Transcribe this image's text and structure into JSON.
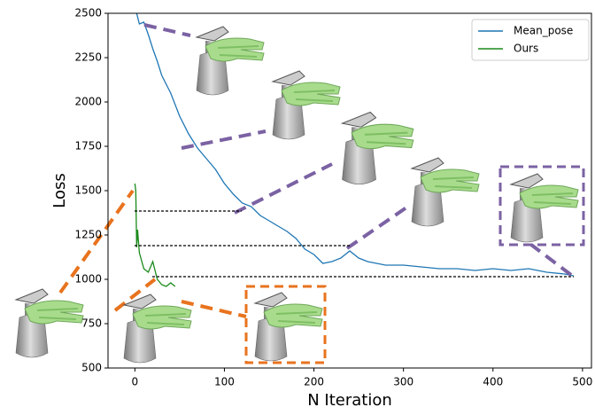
{
  "chart_data": {
    "type": "line",
    "xlabel": "N Iteration",
    "ylabel": "Loss",
    "xlim": [
      -30,
      510
    ],
    "ylim": [
      500,
      2500
    ],
    "xticks": [
      0,
      100,
      200,
      300,
      400,
      500
    ],
    "yticks": [
      500,
      750,
      1000,
      1250,
      1500,
      1750,
      2000,
      2250,
      2500
    ],
    "legend": "upper right",
    "series": [
      {
        "name": "Mean_pose",
        "color": "#1f77b4",
        "x": [
          2,
          5,
          10,
          15,
          20,
          25,
          30,
          40,
          50,
          60,
          70,
          80,
          90,
          100,
          110,
          120,
          130,
          140,
          150,
          160,
          170,
          180,
          190,
          200,
          210,
          220,
          230,
          240,
          250,
          260,
          280,
          300,
          320,
          340,
          360,
          380,
          400,
          420,
          440,
          460,
          480,
          490
        ],
        "values": [
          2500,
          2440,
          2450,
          2380,
          2300,
          2230,
          2150,
          2050,
          1920,
          1820,
          1740,
          1680,
          1620,
          1540,
          1480,
          1430,
          1410,
          1360,
          1330,
          1300,
          1270,
          1230,
          1170,
          1140,
          1090,
          1100,
          1120,
          1160,
          1120,
          1100,
          1080,
          1080,
          1070,
          1060,
          1060,
          1050,
          1060,
          1050,
          1060,
          1040,
          1030,
          1020
        ]
      },
      {
        "name": "Ours",
        "color": "#1a8a1a",
        "x": [
          0,
          1,
          2,
          3,
          5,
          10,
          15,
          20,
          25,
          30,
          35,
          40,
          45
        ],
        "values": [
          1540,
          1500,
          1180,
          1280,
          1150,
          1060,
          1040,
          1100,
          1000,
          970,
          960,
          980,
          960
        ]
      }
    ]
  }
}
